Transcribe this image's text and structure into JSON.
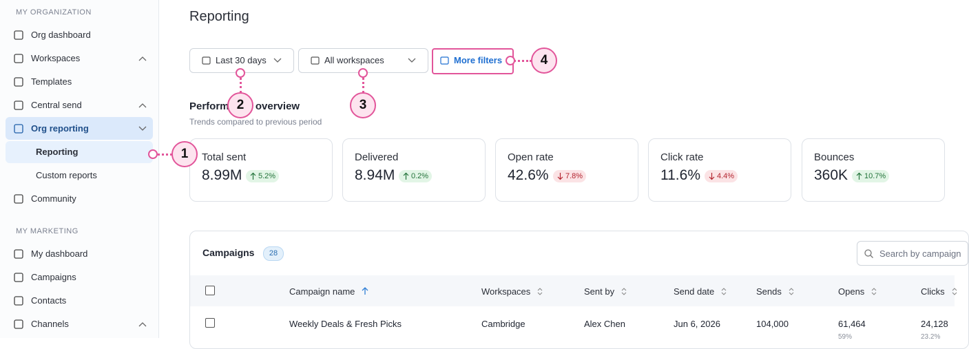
{
  "sidebar": {
    "sections": [
      {
        "heading": "MY ORGANIZATION",
        "items": [
          {
            "label": "Org dashboard"
          },
          {
            "label": "Workspaces",
            "chevron": "up"
          },
          {
            "label": "Templates"
          },
          {
            "label": "Central send",
            "chevron": "up"
          },
          {
            "label": "Org reporting",
            "chevron": "down",
            "active": true
          },
          {
            "label": "Reporting",
            "sub": true,
            "selected": true
          },
          {
            "label": "Custom reports",
            "sub": true
          },
          {
            "label": "Community"
          }
        ]
      },
      {
        "heading": "MY MARKETING",
        "items": [
          {
            "label": "My dashboard"
          },
          {
            "label": "Campaigns"
          },
          {
            "label": "Contacts"
          },
          {
            "label": "Channels",
            "chevron": "up"
          }
        ]
      }
    ]
  },
  "main": {
    "title": "Reporting",
    "filters": [
      "Last 30 days",
      "All workspaces",
      "More filters"
    ],
    "overview": {
      "title": "Performance overview",
      "subtitle": "Trends compared to previous period",
      "cards": [
        {
          "label": "Total sent",
          "value": "8.99M",
          "change": "5.2%",
          "direction": "up"
        },
        {
          "label": "Delivered",
          "value": "8.94M",
          "change": "0.2%",
          "direction": "up"
        },
        {
          "label": "Open rate",
          "value": "42.6%",
          "change": "7.8%",
          "direction": "down"
        },
        {
          "label": "Click rate",
          "value": "11.6%",
          "change": "4.4%",
          "direction": "down"
        },
        {
          "label": "Bounces",
          "value": "360K",
          "change": "10.7%",
          "direction": "up"
        }
      ]
    },
    "table": {
      "title": "Campaigns",
      "count": 28,
      "search_placeholder": "Search by campaign",
      "columns": [
        "Campaign name",
        "Workspaces",
        "Sent by",
        "Send date",
        "Sends",
        "Opens",
        "Clicks"
      ],
      "rows": [
        [
          "Weekly Deals & Fresh Picks",
          "Cambridge",
          "Alex Chen",
          "Jun 6, 2026",
          "104,000",
          "61,464",
          "24,128"
        ]
      ],
      "row_subtexts": [
        [
          "59%",
          "23.2%"
        ]
      ]
    }
  },
  "callouts": [
    1,
    2,
    3,
    4
  ]
}
